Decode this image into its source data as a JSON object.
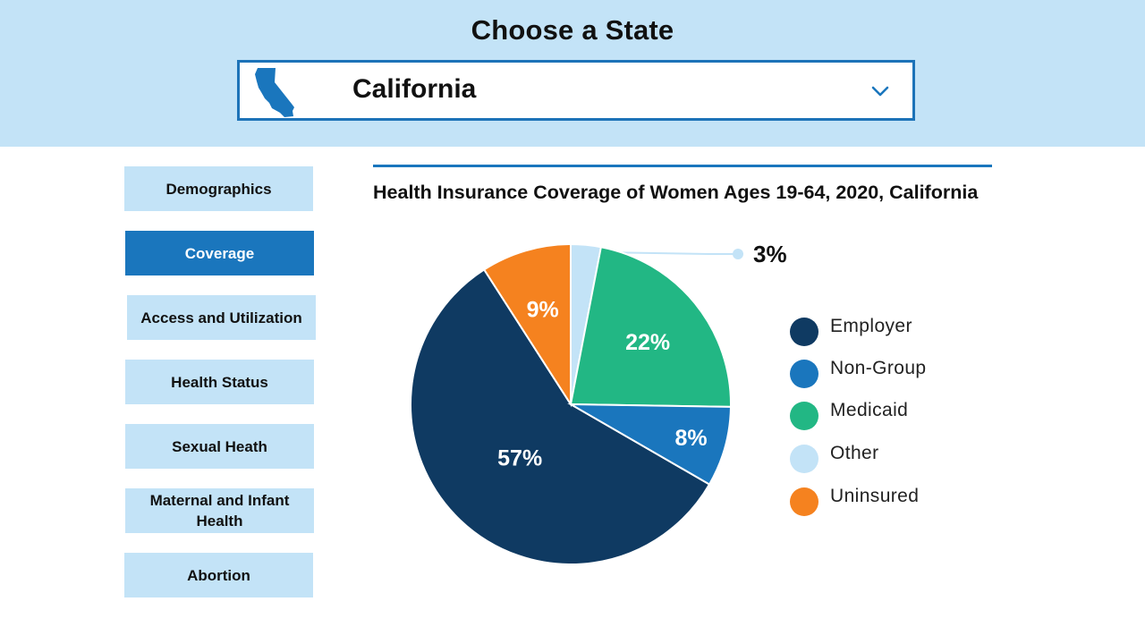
{
  "header": {
    "title": "Choose a State",
    "selected_state": "California"
  },
  "sidebar": {
    "items": [
      {
        "label": "Demographics",
        "active": false
      },
      {
        "label": "Coverage",
        "active": true
      },
      {
        "label": "Access and Utilization",
        "active": false
      },
      {
        "label": "Health Status",
        "active": false
      },
      {
        "label": "Sexual Heath",
        "active": false
      },
      {
        "label": "Maternal and Infant Health",
        "active": false
      },
      {
        "label": "Abortion",
        "active": false
      }
    ]
  },
  "colors": {
    "header_bg": "#c3e3f7",
    "accent": "#1a76bd",
    "employer": "#0f3a62",
    "non_group": "#1a76bd",
    "medicaid": "#22b784",
    "other": "#c3e3f7",
    "uninsured": "#f5821f"
  },
  "chart_data": {
    "type": "pie",
    "title": "Health Insurance Coverage of Women Ages 19-64, 2020, California",
    "categories": [
      "Employer",
      "Non-Group",
      "Medicaid",
      "Other",
      "Uninsured"
    ],
    "values": [
      57,
      8,
      22,
      3,
      9
    ],
    "labels": [
      "57%",
      "8%",
      "22%",
      "3%",
      "9%"
    ],
    "legend_position": "right"
  }
}
